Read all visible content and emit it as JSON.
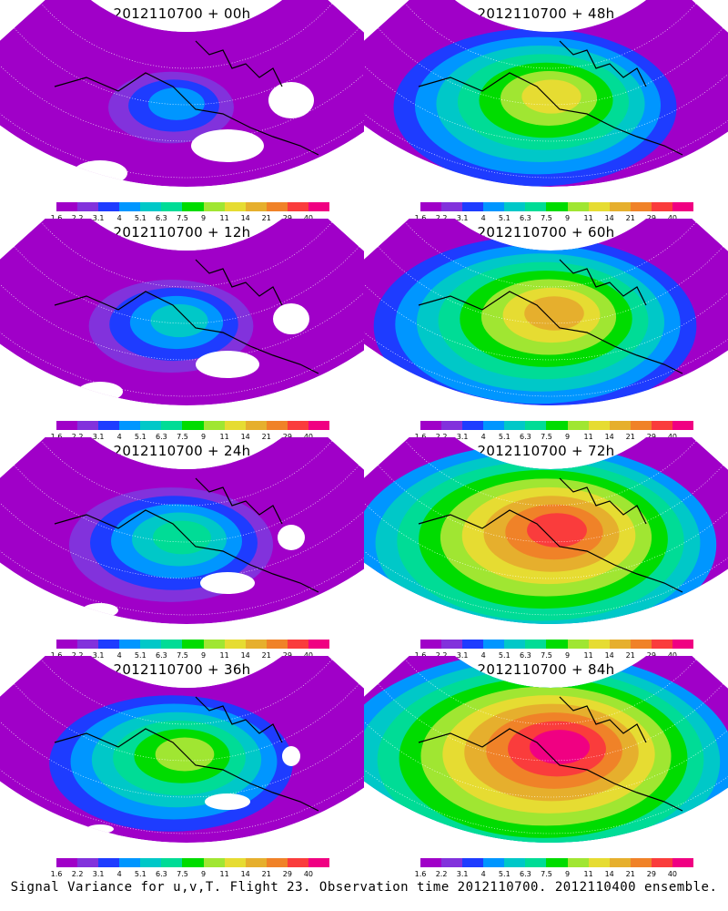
{
  "panels": [
    {
      "title": "2012110700 + 00h",
      "intensity": 0
    },
    {
      "title": "2012110700 + 48h",
      "intensity": 4
    },
    {
      "title": "2012110700 + 12h",
      "intensity": 1
    },
    {
      "title": "2012110700 + 60h",
      "intensity": 5
    },
    {
      "title": "2012110700 + 24h",
      "intensity": 2
    },
    {
      "title": "2012110700 + 72h",
      "intensity": 6
    },
    {
      "title": "2012110700 + 36h",
      "intensity": 3
    },
    {
      "title": "2012110700 + 84h",
      "intensity": 7
    }
  ],
  "colorbar": {
    "labels": [
      "1.6",
      "2.2",
      "3.1",
      "4",
      "5.1",
      "6.3",
      "7.5",
      "9",
      "11",
      "14",
      "21",
      "29",
      "40"
    ],
    "colors": [
      "#a000c8",
      "#8232dc",
      "#1e3cff",
      "#0096ff",
      "#00c8c8",
      "#00dc96",
      "#00dc00",
      "#a0e632",
      "#e6dc32",
      "#e6af2d",
      "#f08228",
      "#fa3c3c",
      "#f00082"
    ]
  },
  "caption": "Signal Variance for u,v,T. Flight 23. Observation time 2012110700. 2012110400 ensemble."
}
